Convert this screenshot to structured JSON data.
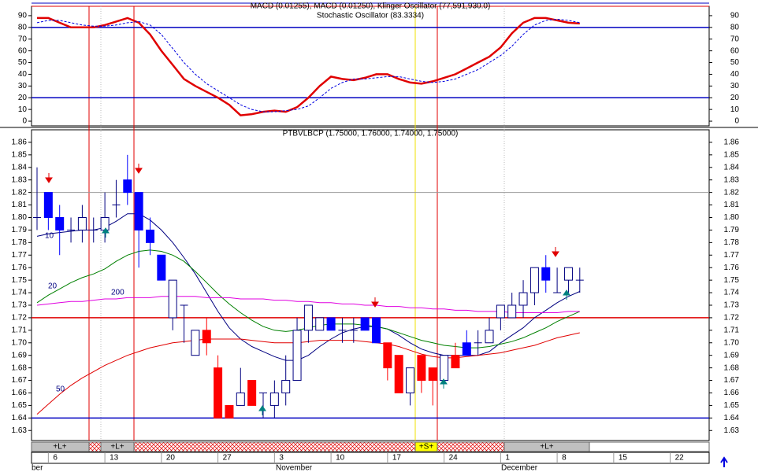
{
  "chart_data": [
    {
      "type": "line",
      "overlay_title": "MACD (0.01255), MACD (0.01250), Klinger Oscillator (77,591,930.0)",
      "title": "Stochastic Oscillator (83.3334)",
      "ylim": [
        -4,
        98
      ],
      "yticks": [
        0,
        10,
        20,
        30,
        40,
        50,
        60,
        70,
        80,
        90
      ],
      "hlines": [
        {
          "value": 80,
          "color": "#0000c0"
        },
        {
          "value": 20,
          "color": "#0000c0"
        }
      ],
      "series": [
        {
          "color": "#e00000",
          "width": 2.5,
          "dashed": false,
          "values": [
            88,
            88,
            84,
            80,
            80,
            80,
            82,
            85,
            88,
            84,
            74,
            60,
            48,
            36,
            30,
            25,
            20,
            14,
            5,
            6,
            8,
            9,
            8,
            12,
            20,
            30,
            38,
            36,
            35,
            37,
            40,
            40,
            36,
            33,
            32,
            34,
            37,
            40,
            45,
            50,
            55,
            63,
            75,
            84,
            88,
            88,
            86,
            84,
            83.3
          ]
        },
        {
          "color": "#0000e0",
          "width": 1,
          "dashed": true,
          "values": [
            84,
            86,
            86,
            84,
            82,
            81,
            81,
            82,
            84,
            85,
            82,
            74,
            62,
            50,
            40,
            32,
            26,
            20,
            14,
            10,
            8,
            8,
            9,
            10,
            13,
            20,
            28,
            33,
            36,
            36,
            37,
            38,
            38,
            36,
            34,
            33,
            34,
            36,
            40,
            44,
            50,
            56,
            64,
            74,
            82,
            86,
            87,
            86,
            84
          ]
        }
      ]
    },
    {
      "type": "candlestick",
      "title": "PTBVLBCP (1.75000, 1.76000, 1.74000, 1.75000)",
      "ylim": [
        1.622,
        1.87
      ],
      "yticks": [
        1.63,
        1.64,
        1.65,
        1.66,
        1.67,
        1.68,
        1.69,
        {
          "value": 1.7,
          "label": "1.70"
        },
        1.71,
        1.72,
        1.73,
        1.74,
        1.75,
        1.76,
        1.77,
        1.78,
        1.79,
        {
          "value": 1.8,
          "label": "1.80"
        },
        1.81,
        1.82,
        1.83,
        1.84,
        1.85,
        1.86
      ],
      "hlines": [
        {
          "value": 1.82,
          "color": "#999999"
        },
        {
          "value": 1.72,
          "color": "#e00000"
        },
        {
          "value": 1.64,
          "color": "#0000c0"
        }
      ],
      "open": [
        1.8,
        1.82,
        1.8,
        1.79,
        1.79,
        1.79,
        1.79,
        1.81,
        1.83,
        1.82,
        1.79,
        1.77,
        1.75,
        1.73,
        1.71,
        1.71,
        1.68,
        1.65,
        1.65,
        1.67,
        1.66,
        1.65,
        1.66,
        1.67,
        1.71,
        1.72,
        1.72,
        1.71,
        1.71,
        1.72,
        1.72,
        1.7,
        1.69,
        1.66,
        1.69,
        1.68,
        1.67,
        1.69,
        1.7,
        1.7,
        1.7,
        1.72,
        1.72,
        1.73,
        1.74,
        1.76,
        1.74,
        1.75,
        1.75
      ],
      "high": [
        1.84,
        1.82,
        1.81,
        1.8,
        1.81,
        1.8,
        1.82,
        1.83,
        1.85,
        1.82,
        1.8,
        1.77,
        1.75,
        1.73,
        1.71,
        1.72,
        1.69,
        1.65,
        1.68,
        1.67,
        1.66,
        1.67,
        1.69,
        1.72,
        1.73,
        1.72,
        1.72,
        1.72,
        1.72,
        1.72,
        1.72,
        1.7,
        1.69,
        1.68,
        1.69,
        1.68,
        1.69,
        1.7,
        1.71,
        1.71,
        1.72,
        1.73,
        1.74,
        1.75,
        1.76,
        1.77,
        1.76,
        1.76,
        1.76
      ],
      "low": [
        1.79,
        1.79,
        1.77,
        1.78,
        1.78,
        1.78,
        1.78,
        1.8,
        1.81,
        1.76,
        1.77,
        1.75,
        1.71,
        1.7,
        1.69,
        1.69,
        1.64,
        1.64,
        1.65,
        1.65,
        1.64,
        1.64,
        1.65,
        1.67,
        1.7,
        1.71,
        1.71,
        1.7,
        1.7,
        1.71,
        1.7,
        1.67,
        1.66,
        1.65,
        1.66,
        1.65,
        1.67,
        1.68,
        1.69,
        1.69,
        1.7,
        1.71,
        1.72,
        1.72,
        1.73,
        1.74,
        1.74,
        1.74,
        1.74
      ],
      "close": [
        1.8,
        1.8,
        1.79,
        1.79,
        1.8,
        1.79,
        1.8,
        1.81,
        1.82,
        1.79,
        1.78,
        1.75,
        1.72,
        1.73,
        1.69,
        1.7,
        1.64,
        1.64,
        1.66,
        1.65,
        1.66,
        1.66,
        1.67,
        1.71,
        1.73,
        1.71,
        1.71,
        1.71,
        1.71,
        1.71,
        1.7,
        1.68,
        1.66,
        1.68,
        1.67,
        1.67,
        1.69,
        1.68,
        1.69,
        1.7,
        1.71,
        1.73,
        1.73,
        1.74,
        1.76,
        1.75,
        1.74,
        1.76,
        1.75
      ],
      "fills": [
        "#ffffff",
        "#0000ff",
        "#0000ff",
        "#ffffff",
        "#ffffff",
        "#ffffff",
        "#ffffff",
        "#ffffff",
        "#0000ff",
        "#0000ff",
        "#0000ff",
        "#0000ff",
        "#ffffff",
        "#ffffff",
        "#ffffff",
        "#ff0000",
        "#ff0000",
        "#ff0000",
        "#ffffff",
        "#ff0000",
        "#ffffff",
        "#ffffff",
        "#ffffff",
        "#ffffff",
        "#ffffff",
        "#ffffff",
        "#0000ff",
        "#ffffff",
        "#ffffff",
        "#0000ff",
        "#0000ff",
        "#ff0000",
        "#ff0000",
        "#ffffff",
        "#ff0000",
        "#ff0000",
        "#ffffff",
        "#ff0000",
        "#0000ff",
        "#ffffff",
        "#ffffff",
        "#ffffff",
        "#ffffff",
        "#ffffff",
        "#ffffff",
        "#0000ff",
        "#ffffff",
        "#ffffff",
        "#ffffff"
      ],
      "series": [
        {
          "name": "10",
          "color": "#000080",
          "values": [
            1.785,
            1.787,
            1.788,
            1.789,
            1.79,
            1.79,
            1.792,
            1.797,
            1.803,
            1.803,
            1.798,
            1.79,
            1.78,
            1.768,
            1.755,
            1.74,
            1.725,
            1.712,
            1.703,
            1.697,
            1.693,
            1.689,
            1.686,
            1.686,
            1.69,
            1.697,
            1.703,
            1.708,
            1.711,
            1.713,
            1.713,
            1.711,
            1.706,
            1.7,
            1.695,
            1.692,
            1.69,
            1.69,
            1.69,
            1.69,
            1.693,
            1.7,
            1.706,
            1.712,
            1.72,
            1.726,
            1.732,
            1.737,
            1.741
          ]
        },
        {
          "name": "20",
          "color": "#008000",
          "values": [
            1.732,
            1.738,
            1.743,
            1.748,
            1.752,
            1.755,
            1.759,
            1.765,
            1.77,
            1.773,
            1.774,
            1.773,
            1.77,
            1.765,
            1.757,
            1.748,
            1.739,
            1.731,
            1.724,
            1.718,
            1.713,
            1.71,
            1.709,
            1.71,
            1.712,
            1.714,
            1.715,
            1.715,
            1.715,
            1.714,
            1.713,
            1.711,
            1.708,
            1.705,
            1.702,
            1.7,
            1.698,
            1.697,
            1.696,
            1.696,
            1.697,
            1.699,
            1.701,
            1.704,
            1.708,
            1.712,
            1.717,
            1.721,
            1.725
          ]
        },
        {
          "name": "200",
          "color": "#e000e0",
          "values": [
            1.73,
            1.731,
            1.732,
            1.733,
            1.733,
            1.734,
            1.735,
            1.735,
            1.736,
            1.736,
            1.736,
            1.737,
            1.737,
            1.737,
            1.737,
            1.736,
            1.736,
            1.736,
            1.735,
            1.735,
            1.735,
            1.734,
            1.734,
            1.733,
            1.733,
            1.732,
            1.732,
            1.731,
            1.731,
            1.73,
            1.73,
            1.729,
            1.729,
            1.728,
            1.728,
            1.727,
            1.727,
            1.726,
            1.726,
            1.725,
            1.725,
            1.725,
            1.724,
            1.724,
            1.724,
            1.724,
            1.724,
            1.725,
            1.725
          ]
        },
        {
          "name": "50",
          "color": "#e00000",
          "values": [
            1.643,
            1.651,
            1.659,
            1.666,
            1.672,
            1.677,
            1.682,
            1.686,
            1.69,
            1.693,
            1.696,
            1.698,
            1.7,
            1.701,
            1.702,
            1.703,
            1.703,
            1.703,
            1.703,
            1.702,
            1.701,
            1.7,
            1.7,
            1.7,
            1.701,
            1.702,
            1.702,
            1.702,
            1.702,
            1.701,
            1.7,
            1.699,
            1.697,
            1.694,
            1.691,
            1.689,
            1.688,
            1.688,
            1.689,
            1.69,
            1.691,
            1.692,
            1.694,
            1.696,
            1.698,
            1.701,
            1.704,
            1.706,
            1.708
          ]
        }
      ]
    }
  ],
  "signals": [
    "+L+",
    "+L+",
    "+S+",
    "+L+"
  ],
  "dates": {
    "ticks": [
      "6",
      "13",
      "20",
      "27",
      "3",
      "10",
      "17",
      "24",
      "1",
      "8",
      "15",
      "22"
    ],
    "months": [
      "ber",
      "November",
      "December"
    ]
  }
}
